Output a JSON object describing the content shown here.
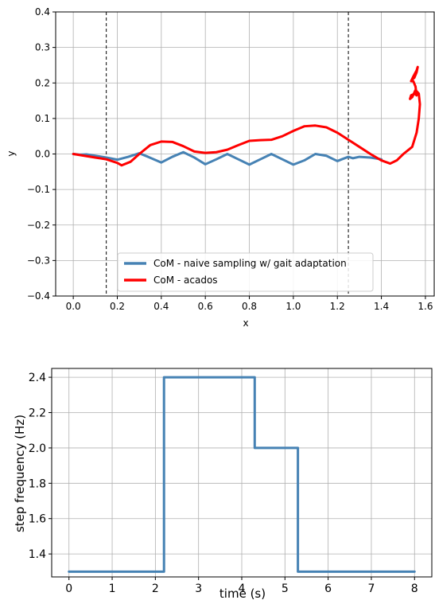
{
  "chart_data": [
    {
      "type": "line",
      "xlabel": "x",
      "ylabel": "y",
      "xlim": [
        -0.08,
        1.64
      ],
      "ylim": [
        -0.4,
        0.4
      ],
      "xticks": [
        0.0,
        0.2,
        0.4,
        0.6,
        0.8,
        1.0,
        1.2,
        1.4,
        1.6
      ],
      "xtick_labels": [
        "0.0",
        "0.2",
        "0.4",
        "0.6",
        "0.8",
        "1.0",
        "1.2",
        "1.4",
        "1.6"
      ],
      "yticks": [
        -0.4,
        -0.3,
        -0.2,
        -0.1,
        0.0,
        0.1,
        0.2,
        0.3,
        0.4
      ],
      "ytick_labels": [
        "−0.4",
        "−0.3",
        "−0.2",
        "−0.1",
        "0.0",
        "0.1",
        "0.2",
        "0.3",
        "0.4"
      ],
      "grid": true,
      "legend_position": "lower-center",
      "vlines": [
        0.15,
        1.25
      ],
      "series": [
        {
          "name": "CoM - naive sampling w/ gait adaptation",
          "color": "#4682b4",
          "points": [
            [
              0.0,
              0.0
            ],
            [
              0.03,
              -0.002
            ],
            [
              0.06,
              -0.001
            ],
            [
              0.1,
              -0.005
            ],
            [
              0.15,
              -0.01
            ],
            [
              0.2,
              -0.016
            ],
            [
              0.25,
              -0.008
            ],
            [
              0.3,
              0.002
            ],
            [
              0.34,
              -0.008
            ],
            [
              0.4,
              -0.024
            ],
            [
              0.45,
              -0.008
            ],
            [
              0.5,
              0.005
            ],
            [
              0.55,
              -0.01
            ],
            [
              0.6,
              -0.029
            ],
            [
              0.65,
              -0.015
            ],
            [
              0.7,
              0.0
            ],
            [
              0.75,
              -0.015
            ],
            [
              0.8,
              -0.03
            ],
            [
              0.85,
              -0.015
            ],
            [
              0.9,
              0.0
            ],
            [
              0.95,
              -0.015
            ],
            [
              1.0,
              -0.03
            ],
            [
              1.05,
              -0.018
            ],
            [
              1.1,
              0.0
            ],
            [
              1.15,
              -0.005
            ],
            [
              1.2,
              -0.02
            ],
            [
              1.22,
              -0.015
            ],
            [
              1.25,
              -0.008
            ],
            [
              1.27,
              -0.012
            ],
            [
              1.3,
              -0.008
            ],
            [
              1.35,
              -0.01
            ],
            [
              1.4,
              -0.015
            ]
          ]
        },
        {
          "name": "CoM - acados",
          "color": "#ff0000",
          "points": [
            [
              0.0,
              0.0
            ],
            [
              0.05,
              -0.005
            ],
            [
              0.1,
              -0.01
            ],
            [
              0.15,
              -0.015
            ],
            [
              0.2,
              -0.025
            ],
            [
              0.22,
              -0.032
            ],
            [
              0.26,
              -0.022
            ],
            [
              0.3,
              0.0
            ],
            [
              0.35,
              0.025
            ],
            [
              0.4,
              0.035
            ],
            [
              0.45,
              0.034
            ],
            [
              0.5,
              0.022
            ],
            [
              0.55,
              0.007
            ],
            [
              0.6,
              0.003
            ],
            [
              0.65,
              0.005
            ],
            [
              0.7,
              0.012
            ],
            [
              0.75,
              0.025
            ],
            [
              0.8,
              0.037
            ],
            [
              0.85,
              0.039
            ],
            [
              0.9,
              0.04
            ],
            [
              0.95,
              0.05
            ],
            [
              1.0,
              0.065
            ],
            [
              1.05,
              0.078
            ],
            [
              1.1,
              0.08
            ],
            [
              1.15,
              0.075
            ],
            [
              1.2,
              0.06
            ],
            [
              1.25,
              0.04
            ],
            [
              1.3,
              0.02
            ],
            [
              1.35,
              0.0
            ],
            [
              1.4,
              -0.018
            ],
            [
              1.44,
              -0.027
            ],
            [
              1.47,
              -0.018
            ],
            [
              1.5,
              0.0
            ],
            [
              1.54,
              0.02
            ],
            [
              1.56,
              0.06
            ],
            [
              1.57,
              0.1
            ],
            [
              1.575,
              0.14
            ],
            [
              1.57,
              0.17
            ],
            [
              1.555,
              0.18
            ],
            [
              1.54,
              0.16
            ],
            [
              1.53,
              0.155
            ],
            [
              1.535,
              0.165
            ],
            [
              1.55,
              0.17
            ],
            [
              1.56,
              0.165
            ],
            [
              1.555,
              0.19
            ],
            [
              1.545,
              0.205
            ],
            [
              1.535,
              0.205
            ],
            [
              1.545,
              0.218
            ],
            [
              1.56,
              0.235
            ],
            [
              1.565,
              0.245
            ],
            [
              1.56,
              0.23
            ],
            [
              1.55,
              0.215
            ],
            [
              1.54,
              0.21
            ]
          ]
        }
      ]
    },
    {
      "type": "line",
      "xlabel": "time (s)",
      "ylabel": "step frequency (Hz)",
      "xlim": [
        -0.4,
        8.4
      ],
      "ylim": [
        1.27,
        2.45
      ],
      "xticks": [
        0,
        1,
        2,
        3,
        4,
        5,
        6,
        7,
        8
      ],
      "xtick_labels": [
        "0",
        "1",
        "2",
        "3",
        "4",
        "5",
        "6",
        "7",
        "8"
      ],
      "yticks": [
        1.4,
        1.6,
        1.8,
        2.0,
        2.2,
        2.4
      ],
      "ytick_labels": [
        "1.4",
        "1.6",
        "1.8",
        "2.0",
        "2.2",
        "2.4"
      ],
      "grid": true,
      "series": [
        {
          "color": "#4682b4",
          "points": [
            [
              0,
              1.3
            ],
            [
              2.2,
              1.3
            ],
            [
              2.2,
              2.4
            ],
            [
              4.3,
              2.4
            ],
            [
              4.3,
              2.0
            ],
            [
              5.3,
              2.0
            ],
            [
              5.3,
              1.3
            ],
            [
              8.0,
              1.3
            ]
          ]
        }
      ]
    }
  ]
}
